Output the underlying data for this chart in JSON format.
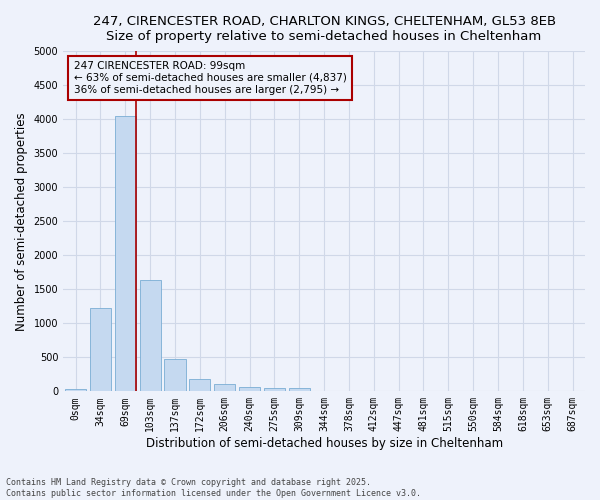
{
  "title_line1": "247, CIRENCESTER ROAD, CHARLTON KINGS, CHELTENHAM, GL53 8EB",
  "title_line2": "Size of property relative to semi-detached houses in Cheltenham",
  "xlabel": "Distribution of semi-detached houses by size in Cheltenham",
  "ylabel": "Number of semi-detached properties",
  "bar_labels": [
    "0sqm",
    "34sqm",
    "69sqm",
    "103sqm",
    "137sqm",
    "172sqm",
    "206sqm",
    "240sqm",
    "275sqm",
    "309sqm",
    "344sqm",
    "378sqm",
    "412sqm",
    "447sqm",
    "481sqm",
    "515sqm",
    "550sqm",
    "584sqm",
    "618sqm",
    "653sqm",
    "687sqm"
  ],
  "bar_values": [
    40,
    1230,
    4050,
    1640,
    475,
    185,
    110,
    65,
    55,
    45,
    0,
    0,
    0,
    0,
    0,
    0,
    0,
    0,
    0,
    0,
    0
  ],
  "bar_color": "#c5d9f0",
  "bar_edge_color": "#7aadd4",
  "background_color": "#eef2fb",
  "grid_color": "#d0d8e8",
  "ylim": [
    0,
    5000
  ],
  "yticks": [
    0,
    500,
    1000,
    1500,
    2000,
    2500,
    3000,
    3500,
    4000,
    4500,
    5000
  ],
  "annotation_title": "247 CIRENCESTER ROAD: 99sqm",
  "annotation_line1": "← 63% of semi-detached houses are smaller (4,837)",
  "annotation_line2": "36% of semi-detached houses are larger (2,795) →",
  "vline_color": "#aa0000",
  "annotation_box_edgecolor": "#aa0000",
  "footer_line1": "Contains HM Land Registry data © Crown copyright and database right 2025.",
  "footer_line2": "Contains public sector information licensed under the Open Government Licence v3.0.",
  "title_fontsize": 9.5,
  "axis_label_fontsize": 8.5,
  "tick_fontsize": 7,
  "annotation_fontsize": 7.5,
  "footer_fontsize": 6
}
